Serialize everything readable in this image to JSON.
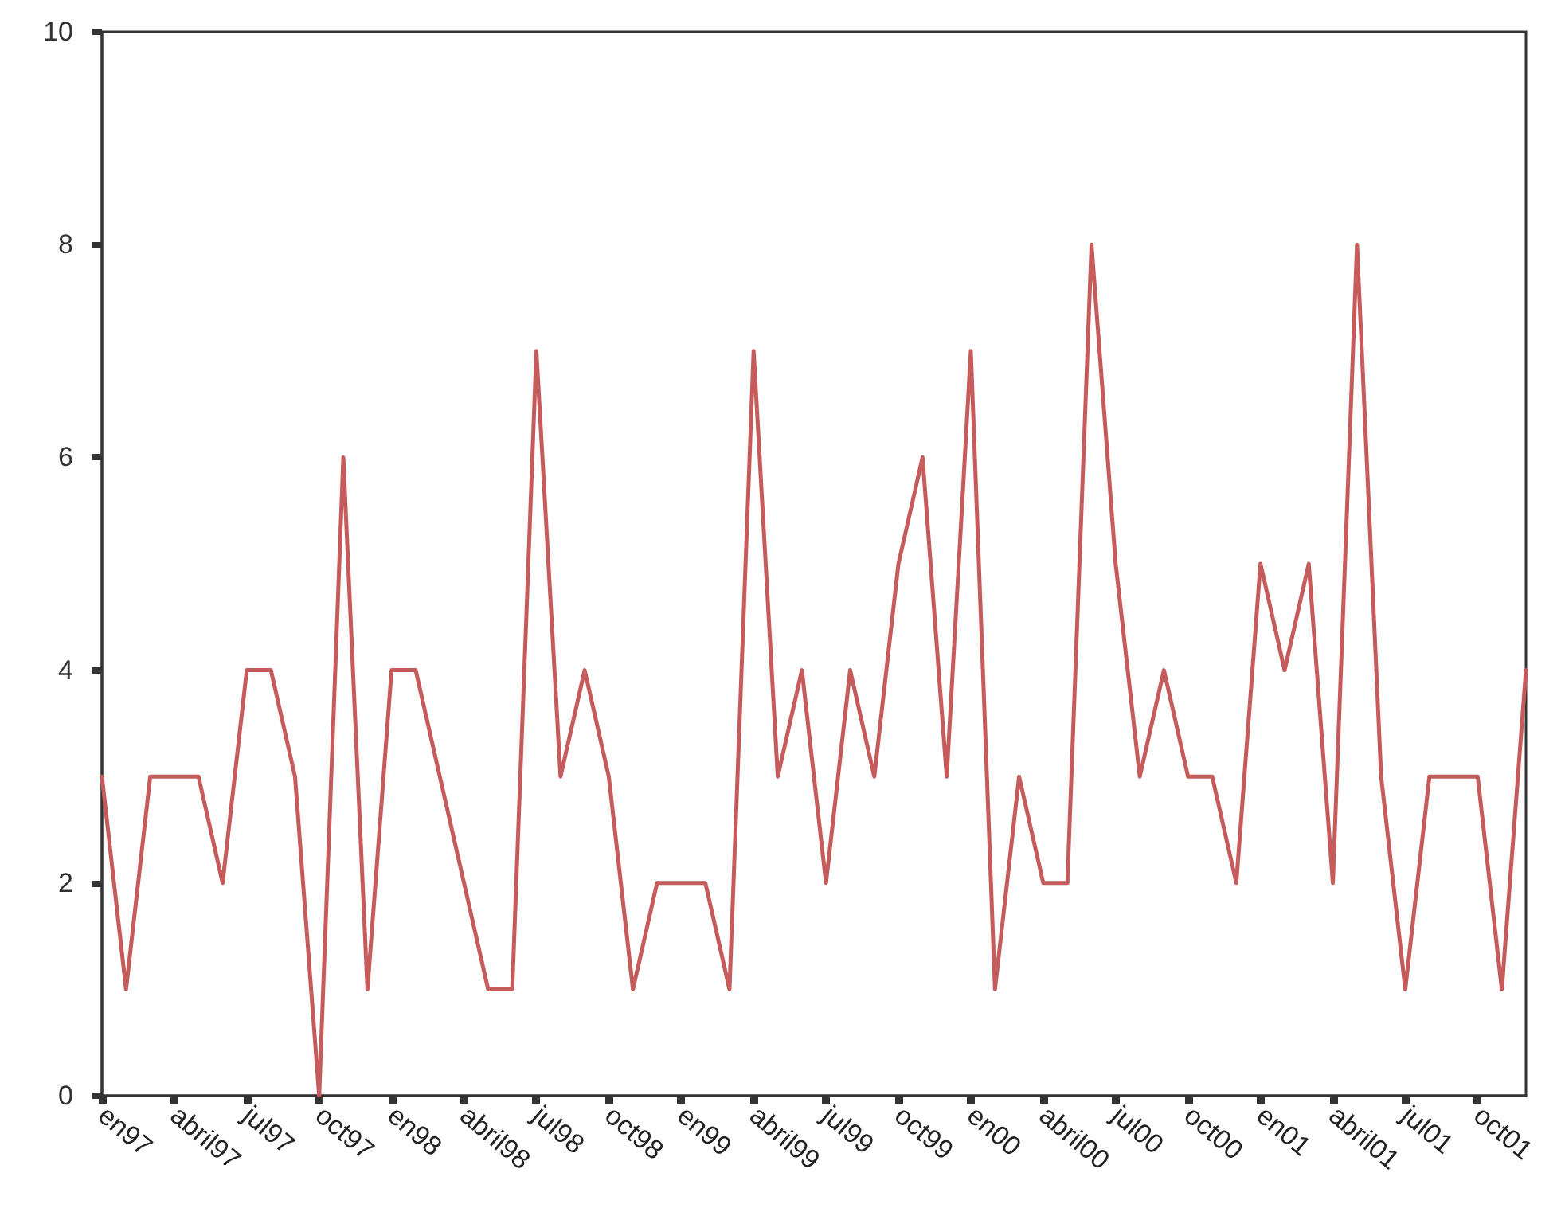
{
  "chart_data": {
    "type": "line",
    "categories": [
      "en97",
      null,
      null,
      "abril97",
      null,
      null,
      "jul97",
      null,
      null,
      "oct97",
      null,
      null,
      "en98",
      null,
      null,
      "abril98",
      null,
      null,
      "jul98",
      null,
      null,
      "oct98",
      null,
      null,
      "en99",
      null,
      null,
      "abril99",
      null,
      null,
      "jul99",
      null,
      null,
      "oct99",
      null,
      null,
      "en00",
      null,
      null,
      "abril00",
      null,
      null,
      "jul00",
      null,
      null,
      "oct00",
      null,
      null,
      "en01",
      null,
      null,
      "abril01",
      null,
      null,
      "jul01",
      null,
      null,
      "oct01",
      null,
      null
    ],
    "series": [
      {
        "color": "#c65b5c",
        "values": [
          3,
          1,
          3,
          3,
          3,
          2,
          4,
          4,
          3,
          0,
          6,
          1,
          4,
          4,
          3,
          2,
          1,
          1,
          7,
          3,
          4,
          3,
          1,
          2,
          2,
          2,
          1,
          7,
          3,
          4,
          2,
          4,
          3,
          5,
          6,
          3,
          7,
          1,
          3,
          2,
          2,
          8,
          5,
          3,
          4,
          3,
          3,
          2,
          5,
          4,
          5,
          2,
          8,
          3,
          1,
          3,
          3,
          3,
          1,
          4
        ]
      }
    ],
    "ylim": [
      0,
      10
    ],
    "yticks": [
      0,
      2,
      4,
      6,
      8,
      10
    ],
    "grid": false,
    "marker": "none",
    "line_style": "solid"
  }
}
